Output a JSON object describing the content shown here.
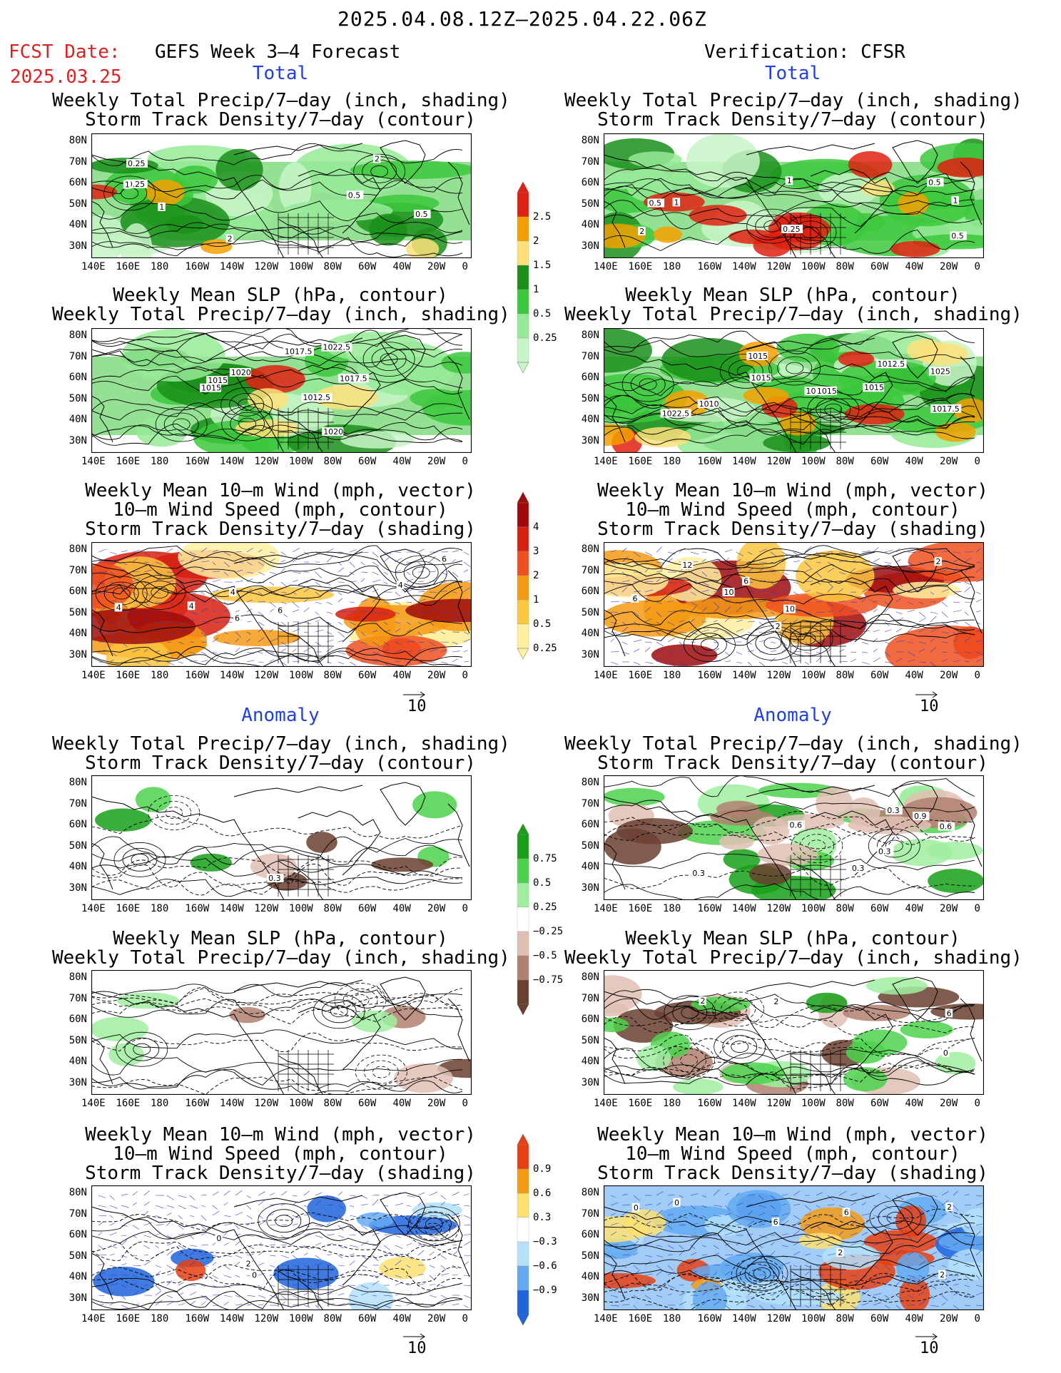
{
  "header": {
    "title": "2025.04.08.12Z–2025.04.22.06Z",
    "fcst_label": "FCST Date:",
    "fcst_date": "2025.03.25",
    "left_title": "GEFS Week 3–4 Forecast",
    "right_title": "Verification: CFSR"
  },
  "sections": {
    "total_left": "Total",
    "total_right": "Total",
    "anom_left": "Anomaly",
    "anom_right": "Anomaly"
  },
  "panel_titles": {
    "precip_storm": [
      "Weekly Total Precip/7–day (inch, shading)",
      "Storm Track Density/7–day (contour)"
    ],
    "slp_precip": [
      "Weekly Mean SLP (hPa, contour)",
      "Weekly Total Precip/7–day (inch, shading)"
    ],
    "wind_storm": [
      "Weekly Mean 10–m Wind (mph, vector)",
      "10–m Wind Speed (mph, contour)",
      "Storm Track Density/7–day (shading)"
    ]
  },
  "axes": {
    "lat_labels": [
      "80N",
      "70N",
      "60N",
      "50N",
      "40N",
      "30N"
    ],
    "lon_labels": [
      "140E",
      "160E",
      "180",
      "160W",
      "140W",
      "120W",
      "100W",
      "80W",
      "60W",
      "40W",
      "20W",
      "0"
    ]
  },
  "colorbars": {
    "precip_total": {
      "labels": [
        "2.5",
        "2",
        "1.5",
        "1",
        "0.5",
        "0.25"
      ],
      "colors": [
        "#e02010",
        "#f5a000",
        "#fde07a",
        "#1a8f1a",
        "#3cc83c",
        "#96ea96",
        "#c8f5c8"
      ]
    },
    "storm_total": {
      "labels": [
        "4",
        "3",
        "2",
        "1",
        "0.5",
        "0.25"
      ],
      "colors": [
        "#a00a0a",
        "#d82010",
        "#f0501e",
        "#f59a14",
        "#fbc640",
        "#fff0a0"
      ]
    },
    "precip_anom": {
      "labels": [
        "0.75",
        "0.5",
        "0.25",
        "−0.25",
        "−0.5",
        "−0.75"
      ],
      "colors": [
        "#18a018",
        "#4cd24c",
        "#a0eea0",
        "#ffffff",
        "#e0c0b4",
        "#b08070",
        "#6a4030"
      ]
    },
    "storm_anom": {
      "labels": [
        "0.9",
        "0.6",
        "0.3",
        "−0.3",
        "−0.6",
        "−0.9"
      ],
      "colors": [
        "#e84010",
        "#f59a14",
        "#fde070",
        "#ffffff",
        "#b4e0fa",
        "#64aaf0",
        "#1e64dc"
      ]
    }
  },
  "contour_labels": {
    "p1l": [
      "0.25",
      "1",
      "2",
      "0.5",
      "0.5",
      "0.25",
      "1",
      "2"
    ],
    "p1r": [
      "0.5",
      "1",
      "0.5",
      "1",
      "2",
      "0.5",
      "1",
      "0.25"
    ],
    "p2l": [
      "1017.5",
      "1012.5",
      "1020",
      "1015",
      "1022.5",
      "1020",
      "1015",
      "1017.5"
    ],
    "p2r": [
      "1020",
      "1025",
      "1017.5",
      "1015",
      "1012.5",
      "1015",
      "1010",
      "1015",
      "1022.5",
      "1015"
    ],
    "p3l": [
      "6",
      "4",
      "6",
      "4",
      "4",
      "4",
      "6"
    ],
    "p3r": [
      "6",
      "6",
      "2",
      "10",
      "10",
      "12",
      "2"
    ],
    "p4l": [
      "0.3"
    ],
    "p4r": [
      "0.6",
      "0.3",
      "0.6",
      "0.9",
      "0.3",
      "0.3",
      "0.3"
    ],
    "p5r": [
      "6",
      "2",
      "0",
      "2"
    ],
    "p6l": [
      "0",
      "0",
      "2"
    ],
    "p6r": [
      "6",
      "6",
      "2",
      "0",
      "2",
      "2",
      "0"
    ]
  },
  "wind_ref_label": "10"
}
